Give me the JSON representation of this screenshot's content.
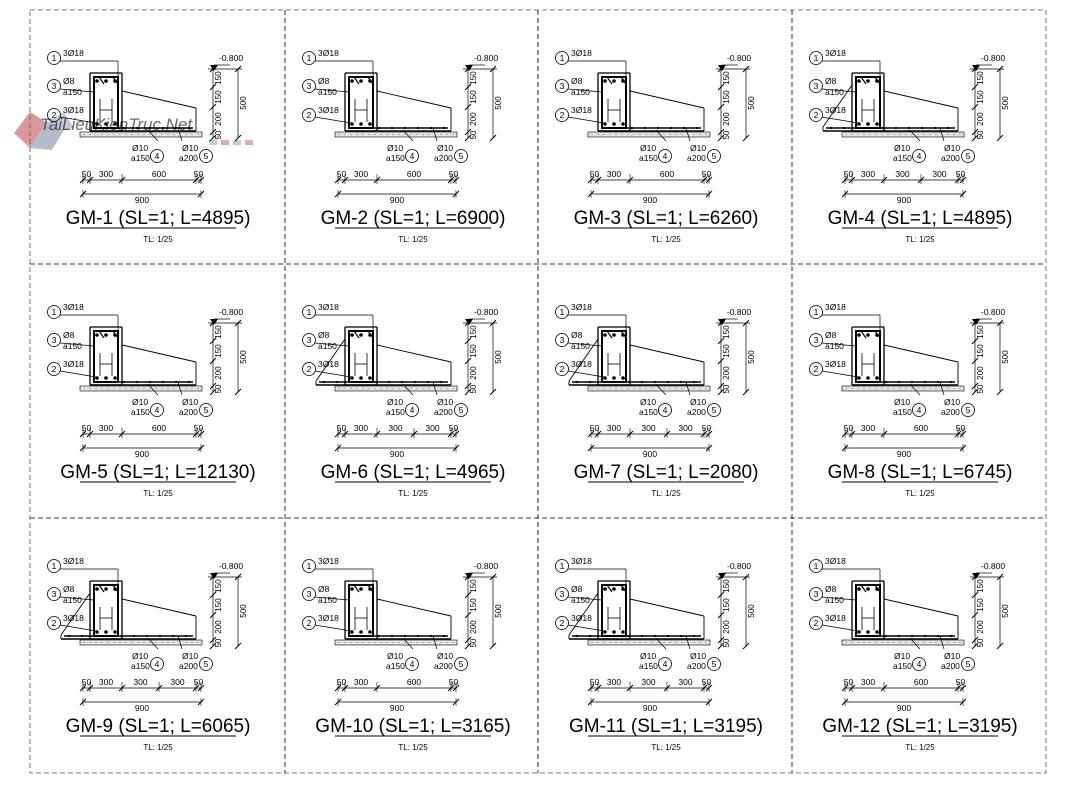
{
  "sheet": {
    "watermark": "TaiLieuKienTruc.Net",
    "scale_label": "TL: 1/25"
  },
  "details": [
    {
      "id": "GM-1",
      "title": "GM-1 (SL=1; L=4895)",
      "slab": "right",
      "dims": [
        "50",
        "300",
        "600",
        "50"
      ]
    },
    {
      "id": "GM-2",
      "title": "GM-2 (SL=1; L=6900)",
      "slab": "right",
      "dims": [
        "50",
        "300",
        "600",
        "50"
      ]
    },
    {
      "id": "GM-3",
      "title": "GM-3 (SL=1; L=6260)",
      "slab": "right",
      "dims": [
        "50",
        "300",
        "600",
        "50"
      ]
    },
    {
      "id": "GM-4",
      "title": "GM-4 (SL=1; L=4895)",
      "slab": "both",
      "dims": [
        "50",
        "300",
        "300",
        "300",
        "50"
      ]
    },
    {
      "id": "GM-5",
      "title": "GM-5 (SL=1; L=12130)",
      "slab": "right",
      "dims": [
        "50",
        "300",
        "600",
        "50"
      ]
    },
    {
      "id": "GM-6",
      "title": "GM-6 (SL=1; L=4965)",
      "slab": "both",
      "dims": [
        "50",
        "300",
        "300",
        "300",
        "50"
      ]
    },
    {
      "id": "GM-7",
      "title": "GM-7 (SL=1; L=2080)",
      "slab": "both",
      "dims": [
        "50",
        "300",
        "300",
        "300",
        "50"
      ]
    },
    {
      "id": "GM-8",
      "title": "GM-8 (SL=1; L=6745)",
      "slab": "right",
      "dims": [
        "50",
        "300",
        "600",
        "50"
      ]
    },
    {
      "id": "GM-9",
      "title": "GM-9 (SL=1; L=6065)",
      "slab": "both",
      "dims": [
        "50",
        "300",
        "300",
        "300",
        "50"
      ]
    },
    {
      "id": "GM-10",
      "title": "GM-10 (SL=1; L=3165)",
      "slab": "right",
      "dims": [
        "50",
        "300",
        "600",
        "50"
      ]
    },
    {
      "id": "GM-11",
      "title": "GM-11 (SL=1; L=3195)",
      "slab": "both",
      "dims": [
        "50",
        "300",
        "300",
        "300",
        "50"
      ]
    },
    {
      "id": "GM-12",
      "title": "GM-12 (SL=1; L=3195)",
      "slab": "right",
      "dims": [
        "50",
        "300",
        "600",
        "50"
      ]
    }
  ],
  "common": {
    "top_bars": "3Ø18",
    "bottom_bars": "3Ø18",
    "stirrup_dia": "Ø8",
    "stirrup_spacing": "a150",
    "level": "-0.800",
    "bar4_dia": "Ø10",
    "bar4_spacing": "a150",
    "bar5_dia": "Ø10",
    "bar5_spacing": "a200",
    "marks": [
      "1",
      "2",
      "3",
      "4",
      "5"
    ],
    "vdims": [
      "150",
      "150",
      "200",
      "50"
    ],
    "total_height": "500",
    "total_width": "900"
  }
}
